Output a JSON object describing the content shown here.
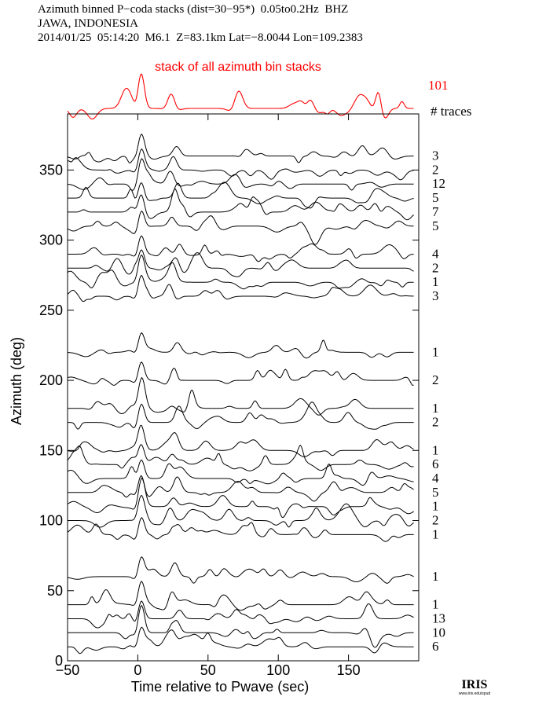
{
  "header": {
    "line1": "Azimuth binned P−coda stacks (dist=30−95*)  0.05to0.2Hz  BHZ",
    "line2": "JAWA, INDONESIA",
    "line3": "2014/01/25  05:14:20  M6.1  Z=83.1km Lat=−8.0044 Lon=109.2383"
  },
  "chart_data": {
    "type": "line",
    "stack_label": "stack of all azimuth bin stacks",
    "stack_count": "101",
    "traces_header": "# traces",
    "xlabel": "Time relative to Pwave (sec)",
    "ylabel": "Azimuth (deg)",
    "xlim": [
      -50,
      200
    ],
    "ylim": [
      0,
      390
    ],
    "xticks": [
      -50,
      0,
      50,
      100,
      150
    ],
    "yticks": [
      0,
      50,
      100,
      150,
      200,
      250,
      300,
      350
    ],
    "colors": {
      "stack": "#ff0000",
      "traces": "#000000",
      "axes": "#000000"
    },
    "series": [
      {
        "azimuth": 360,
        "count": "3"
      },
      {
        "azimuth": 350,
        "count": "2"
      },
      {
        "azimuth": 340,
        "count": "12"
      },
      {
        "azimuth": 330,
        "count": "5"
      },
      {
        "azimuth": 320,
        "count": "7"
      },
      {
        "azimuth": 310,
        "count": "5"
      },
      {
        "azimuth": 290,
        "count": "4"
      },
      {
        "azimuth": 280,
        "count": "2"
      },
      {
        "azimuth": 270,
        "count": "1"
      },
      {
        "azimuth": 260,
        "count": "3"
      },
      {
        "azimuth": 220,
        "count": "1"
      },
      {
        "azimuth": 200,
        "count": "2"
      },
      {
        "azimuth": 180,
        "count": "1"
      },
      {
        "azimuth": 170,
        "count": "2"
      },
      {
        "azimuth": 150,
        "count": "1"
      },
      {
        "azimuth": 140,
        "count": "6"
      },
      {
        "azimuth": 130,
        "count": "4"
      },
      {
        "azimuth": 120,
        "count": "5"
      },
      {
        "azimuth": 110,
        "count": "1"
      },
      {
        "azimuth": 100,
        "count": "2"
      },
      {
        "azimuth": 90,
        "count": "1"
      },
      {
        "azimuth": 60,
        "count": "1"
      },
      {
        "azimuth": 40,
        "count": "1"
      },
      {
        "azimuth": 30,
        "count": "13"
      },
      {
        "azimuth": 20,
        "count": "10"
      },
      {
        "azimuth": 10,
        "count": "6"
      }
    ]
  },
  "logo": {
    "text": "IRIS",
    "url_text": "www.iris.edu/spud"
  }
}
